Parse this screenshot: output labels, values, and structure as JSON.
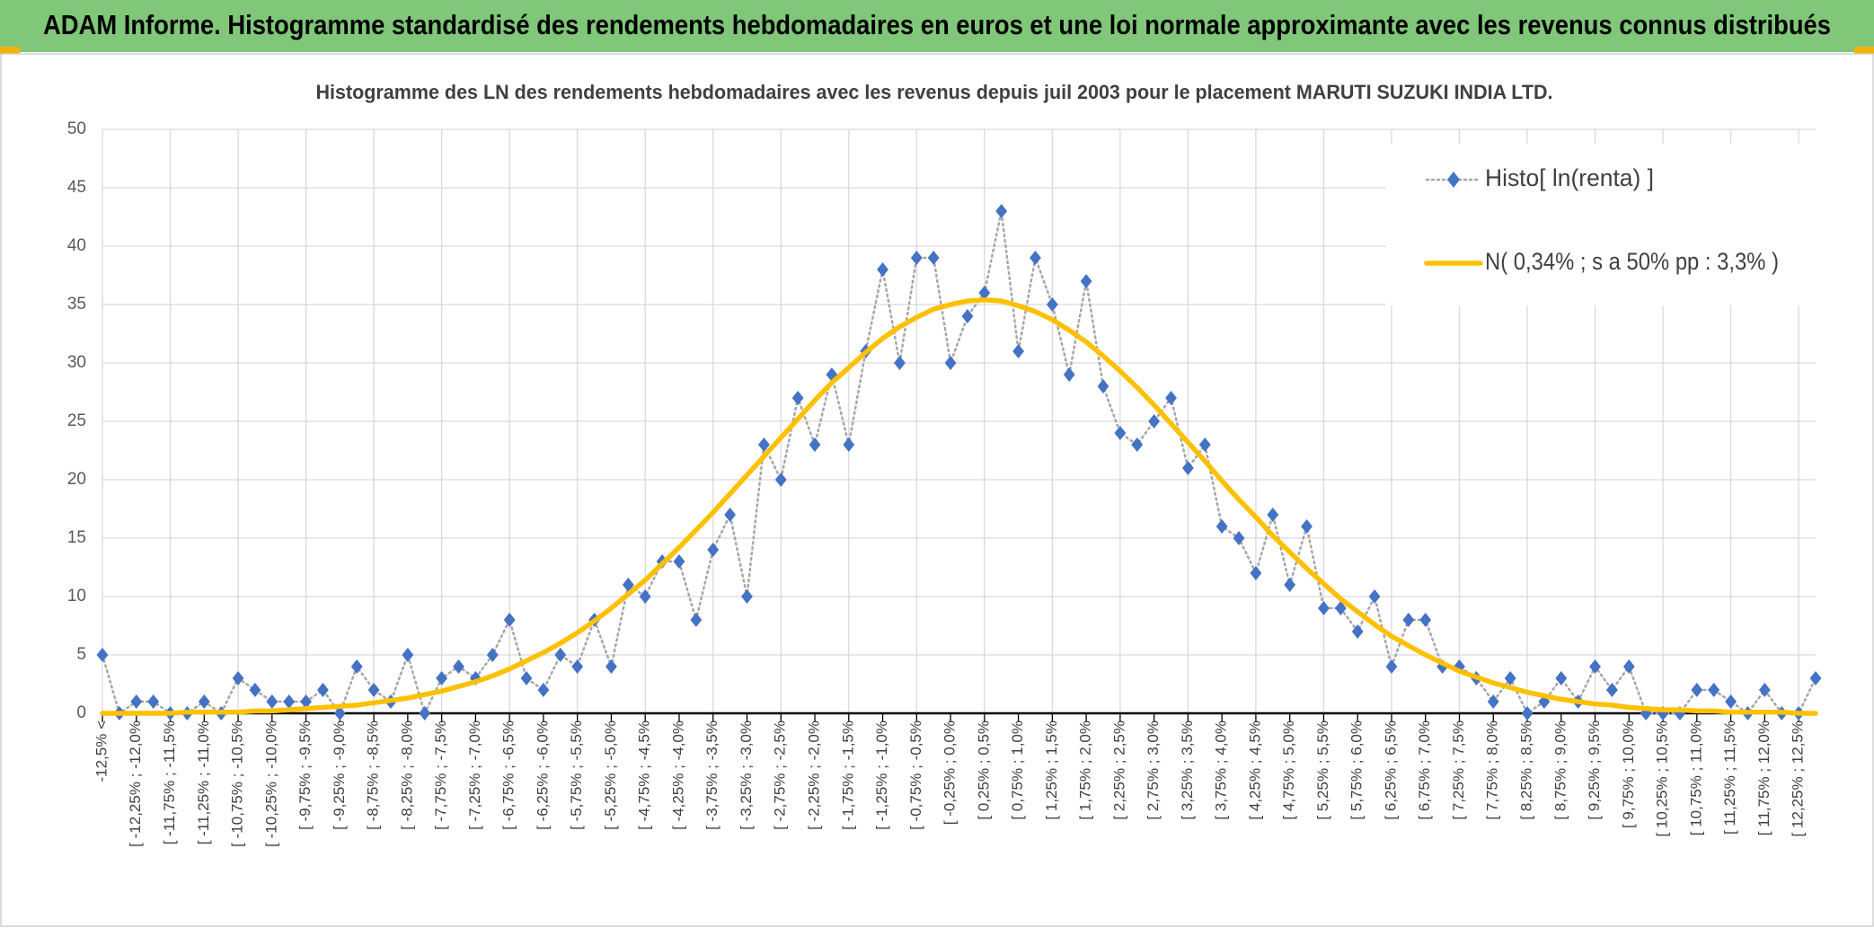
{
  "header": {
    "title": "ADAM Informe. Histogramme standardisé des rendements hebdomadaires en euros et une loi normale approximante avec les revenus connus distribués"
  },
  "chart_data": {
    "type": "line",
    "title": "Histogramme des LN des rendements hebdomadaires avec les revenus depuis juil 2003 pour le placement MARUTI SUZUKI INDIA LTD.",
    "categories": [
      "-12,5% <",
      null,
      "[ -12,25% ; -12,0%",
      null,
      "[ -11,75% ; -11,5%",
      null,
      "[ -11,25% ; -11,0%",
      null,
      "[ -10,75% ; -10,5%",
      null,
      "[ -10,25% ; -10,0%",
      null,
      "[ -9,75% ; -9,5%",
      null,
      "[ -9,25% ; -9,0%",
      null,
      "[ -8,75% ; -8,5%",
      null,
      "[ -8,25% ; -8,0%",
      null,
      "[ -7,75% ; -7,5%",
      null,
      "[ -7,25% ; -7,0%",
      null,
      "[ -6,75% ; -6,5%",
      null,
      "[ -6,25% ; -6,0%",
      null,
      "[ -5,75% ; -5,5%",
      null,
      "[ -5,25% ; -5,0%",
      null,
      "[ -4,75% ; -4,5%",
      null,
      "[ -4,25% ; -4,0%",
      null,
      "[ -3,75% ; -3,5%",
      null,
      "[ -3,25% ; -3,0%",
      null,
      "[ -2,75% ; -2,5%",
      null,
      "[ -2,25% ; -2,0%",
      null,
      "[ -1,75% ; -1,5%",
      null,
      "[ -1,25% ; -1,0%",
      null,
      "[ -0,75% ; -0,5%",
      null,
      "[ -0,25% ; 0,0%",
      null,
      "[ 0,25% ; 0,5%",
      null,
      "[ 0,75% ; 1,0%",
      null,
      "[ 1,25% ; 1,5%",
      null,
      "[ 1,75% ; 2,0%",
      null,
      "[ 2,25% ; 2,5%",
      null,
      "[ 2,75% ; 3,0%",
      null,
      "[ 3,25% ; 3,5%",
      null,
      "[ 3,75% ; 4,0%",
      null,
      "[ 4,25% ; 4,5%",
      null,
      "[ 4,75% ; 5,0%",
      null,
      "[ 5,25% ; 5,5%",
      null,
      "[ 5,75% ; 6,0%",
      null,
      "[ 6,25% ; 6,5%",
      null,
      "[ 6,75% ; 7,0%",
      null,
      "[ 7,25% ; 7,5%",
      null,
      "[ 7,75% ; 8,0%",
      null,
      "[ 8,25% ; 8,5%",
      null,
      "[ 8,75% ; 9,0%",
      null,
      "[ 9,25% ; 9,5%",
      null,
      "[ 9,75% ; 10,0%",
      null,
      "[ 10,25% ; 10,5%",
      null,
      "[ 10,75% ; 11,0%",
      null,
      "[ 11,25% ; 11,5%",
      null,
      "[ 11,75% ; 12,0%",
      null,
      "[ 12,25% ; 12,5%",
      null
    ],
    "series": [
      {
        "name": "Histo[ ln(renta) ]",
        "color": "#4472c4",
        "line_color": "#a6a6a6",
        "marker": "diamond",
        "line_style": "dotted",
        "values": [
          5,
          0,
          1,
          1,
          0,
          0,
          1,
          0,
          3,
          2,
          1,
          1,
          1,
          2,
          0,
          4,
          2,
          1,
          5,
          0,
          3,
          4,
          3,
          5,
          8,
          3,
          2,
          5,
          4,
          8,
          4,
          11,
          10,
          13,
          13,
          8,
          14,
          17,
          10,
          23,
          20,
          27,
          23,
          29,
          23,
          31,
          38,
          30,
          39,
          39,
          30,
          34,
          36,
          43,
          31,
          39,
          35,
          29,
          37,
          28,
          24,
          23,
          25,
          27,
          21,
          23,
          16,
          15,
          12,
          17,
          11,
          16,
          9,
          9,
          7,
          10,
          4,
          8,
          8,
          4,
          4,
          3,
          1,
          3,
          0,
          1,
          3,
          1,
          4,
          2,
          4,
          0,
          0,
          0,
          2,
          2,
          1,
          0,
          2,
          0,
          0,
          3
        ]
      },
      {
        "name": "N( 0,34% ; s a 50% pp : 3,3% )",
        "color": "#ffc000",
        "line_style": "solid",
        "values": [
          0.0,
          0.0,
          0.0,
          0.0,
          0.0,
          0.1,
          0.1,
          0.1,
          0.1,
          0.2,
          0.2,
          0.3,
          0.4,
          0.5,
          0.6,
          0.7,
          0.9,
          1.1,
          1.3,
          1.6,
          1.9,
          2.3,
          2.7,
          3.2,
          3.8,
          4.5,
          5.2,
          6.0,
          6.9,
          7.9,
          9.0,
          10.2,
          11.4,
          12.8,
          14.2,
          15.7,
          17.2,
          18.8,
          20.4,
          22.0,
          23.6,
          25.2,
          26.8,
          28.3,
          29.6,
          30.9,
          32.1,
          33.1,
          33.9,
          34.6,
          35.0,
          35.3,
          35.4,
          35.3,
          34.9,
          34.4,
          33.7,
          32.8,
          31.8,
          30.6,
          29.3,
          27.9,
          26.4,
          24.8,
          23.2,
          21.6,
          19.9,
          18.3,
          16.8,
          15.2,
          13.8,
          12.4,
          11.1,
          9.8,
          8.7,
          7.6,
          6.6,
          5.8,
          5.0,
          4.3,
          3.6,
          3.1,
          2.6,
          2.2,
          1.8,
          1.5,
          1.2,
          1.0,
          0.8,
          0.7,
          0.5,
          0.4,
          0.3,
          0.3,
          0.2,
          0.2,
          0.1,
          0.1,
          0.1,
          0.1,
          0.0,
          0.0
        ]
      }
    ],
    "ylim": [
      0,
      50
    ],
    "yticks": [
      0,
      5,
      10,
      15,
      20,
      25,
      30,
      35,
      40,
      45,
      50
    ],
    "grid": true,
    "legend": "upper right"
  }
}
